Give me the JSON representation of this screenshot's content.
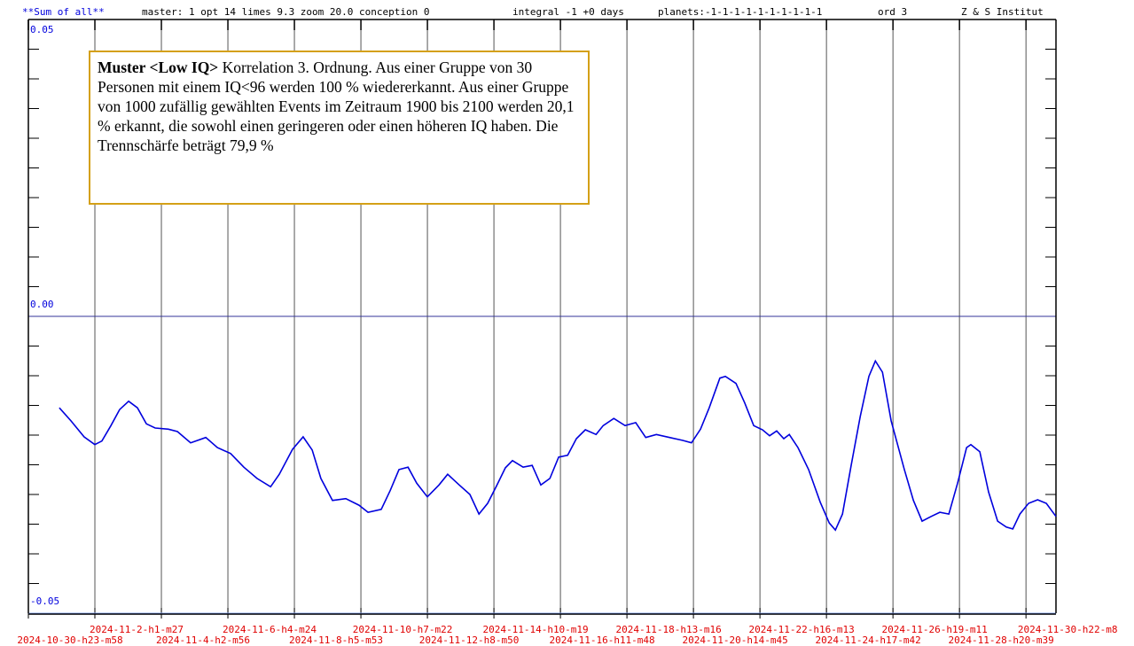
{
  "chart_data": {
    "type": "line",
    "title": "**Sum of all**",
    "header": [
      "master: 1  opt 14 limes 9.3 zoom 20.0 conception 0",
      "integral -1 +0 days",
      "planets:-1-1-1-1-1-1-1-1-1-1",
      "ord 3",
      "Z & S Institut"
    ],
    "annotation_title": "Muster <Low IQ>",
    "annotation": "Korrelation 3. Ordnung. Aus einer Gruppe von 30 Personen mit einem IQ<96  werden 100 % wiedererkannt. Aus einer Gruppe von 1000 zufällig gewählten Events im Zeitraum 1900 bis 2100 werden 20,1 % erkannt, die sowohl einen geringeren oder einen höheren IQ haben. Die Trennschärfe beträgt 79,9 %",
    "xlim": [
      0,
      31.86
    ],
    "ylim": [
      -0.05,
      0.05
    ],
    "yticks": [
      0.05,
      {
        "value": 0,
        "label": "0.00"
      },
      -0.05
    ],
    "xticks": [
      {
        "value": 0,
        "label": "2024-10-30-h23-m58"
      },
      {
        "value": 2.062,
        "label": "2024-11-2-h1-m27"
      },
      {
        "value": 4.124,
        "label": "2024-11-4-h2-m56"
      },
      {
        "value": 6.186,
        "label": "2024-11-6-h4-m24"
      },
      {
        "value": 8.248,
        "label": "2024-11-8-h5-m53"
      },
      {
        "value": 10.31,
        "label": "2024-11-10-h7-m22"
      },
      {
        "value": 12.372,
        "label": "2024-11-12-h8-m50"
      },
      {
        "value": 14.434,
        "label": "2024-11-14-h10-m19"
      },
      {
        "value": 16.496,
        "label": "2024-11-16-h11-m48"
      },
      {
        "value": 18.558,
        "label": "2024-11-18-h13-m16"
      },
      {
        "value": 20.62,
        "label": "2024-11-20-h14-m45"
      },
      {
        "value": 22.682,
        "label": "2024-11-22-h16-m13"
      },
      {
        "value": 24.744,
        "label": "2024-11-24-h17-m42"
      },
      {
        "value": 26.806,
        "label": "2024-11-26-h19-m11"
      },
      {
        "value": 28.868,
        "label": "2024-11-28-h20-m39"
      },
      {
        "value": 30.93,
        "label": "2024-11-30-h22-m8"
      }
    ],
    "color": "#0000dd",
    "x": [
      0.96,
      1.32,
      1.73,
      2.06,
      2.28,
      2.56,
      2.83,
      3.11,
      3.38,
      3.66,
      3.93,
      4.34,
      4.62,
      5.03,
      5.5,
      5.86,
      6.27,
      6.68,
      7.09,
      7.51,
      7.78,
      8.19,
      8.52,
      8.8,
      9.07,
      9.43,
      9.84,
      10.25,
      10.53,
      10.94,
      11.22,
      11.49,
      11.77,
      12.04,
      12.37,
      12.73,
      13.0,
      13.36,
      13.69,
      13.97,
      14.24,
      14.52,
      14.79,
      15.01,
      15.34,
      15.62,
      15.89,
      16.17,
      16.44,
      16.72,
      16.99,
      17.27,
      17.6,
      17.82,
      18.15,
      18.5,
      18.83,
      19.14,
      19.47,
      19.88,
      20.29,
      20.56,
      20.84,
      21.11,
      21.44,
      21.61,
      21.94,
      22.21,
      22.49,
      22.76,
      22.98,
      23.2,
      23.42,
      23.59,
      23.86,
      24.19,
      24.55,
      24.83,
      25.02,
      25.24,
      25.51,
      25.79,
      26.06,
      26.26,
      26.48,
      26.75,
      27.16,
      27.44,
      27.71,
      27.99,
      28.26,
      28.54,
      28.81,
      29.09,
      29.22,
      29.5,
      29.77,
      30.05,
      30.32,
      30.52,
      30.74,
      31.01,
      31.29,
      31.56,
      31.86
    ],
    "values": [
      -0.0154,
      -0.0176,
      -0.0203,
      -0.0216,
      -0.021,
      -0.0184,
      -0.0157,
      -0.0143,
      -0.0154,
      -0.0181,
      -0.0188,
      -0.019,
      -0.0194,
      -0.0213,
      -0.0204,
      -0.0221,
      -0.0231,
      -0.0254,
      -0.0273,
      -0.0287,
      -0.0266,
      -0.0224,
      -0.0203,
      -0.0225,
      -0.0273,
      -0.031,
      -0.0307,
      -0.0318,
      -0.033,
      -0.0325,
      -0.0293,
      -0.0258,
      -0.0254,
      -0.0281,
      -0.0304,
      -0.0284,
      -0.0266,
      -0.0284,
      -0.03,
      -0.0333,
      -0.0315,
      -0.0285,
      -0.0255,
      -0.0243,
      -0.0254,
      -0.0251,
      -0.0284,
      -0.0273,
      -0.0237,
      -0.0234,
      -0.0206,
      -0.0191,
      -0.0199,
      -0.0184,
      -0.0172,
      -0.0184,
      -0.0179,
      -0.0204,
      -0.0199,
      -0.0204,
      -0.0209,
      -0.0213,
      -0.019,
      -0.0154,
      -0.0104,
      -0.0101,
      -0.0113,
      -0.0146,
      -0.0184,
      -0.0191,
      -0.0201,
      -0.0193,
      -0.0206,
      -0.0199,
      -0.0221,
      -0.0258,
      -0.0313,
      -0.0348,
      -0.036,
      -0.0333,
      -0.0251,
      -0.0169,
      -0.0101,
      -0.0075,
      -0.0094,
      -0.0176,
      -0.0258,
      -0.031,
      -0.0345,
      -0.0337,
      -0.033,
      -0.0333,
      -0.0281,
      -0.0221,
      -0.0216,
      -0.0228,
      -0.0296,
      -0.0345,
      -0.0355,
      -0.0358,
      -0.0333,
      -0.0315,
      -0.0309,
      -0.0315,
      -0.0337
    ]
  }
}
